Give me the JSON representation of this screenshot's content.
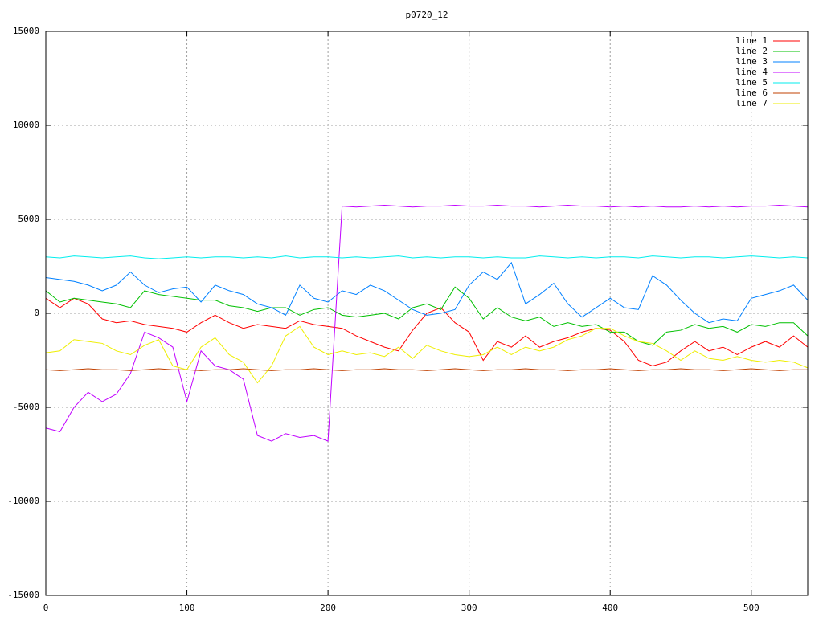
{
  "chart_data": {
    "type": "line",
    "title": "p0720_12",
    "x": [
      0,
      10,
      20,
      30,
      40,
      50,
      60,
      70,
      80,
      90,
      100,
      110,
      120,
      130,
      140,
      150,
      160,
      170,
      180,
      190,
      200,
      210,
      220,
      230,
      240,
      250,
      260,
      270,
      280,
      290,
      300,
      310,
      320,
      330,
      340,
      350,
      360,
      370,
      380,
      390,
      400,
      410,
      420,
      430,
      440,
      450,
      460,
      470,
      480,
      490,
      500,
      510,
      520,
      530,
      540
    ],
    "xlim": [
      0,
      540
    ],
    "xticks": [
      0,
      100,
      200,
      300,
      400,
      500
    ],
    "ylim": [
      -15000,
      15000
    ],
    "yticks": [
      -15000,
      -10000,
      -5000,
      0,
      5000,
      10000,
      15000
    ],
    "grid": true,
    "legend": "top-right",
    "series": [
      {
        "name": "line 1",
        "color": "#ff0000",
        "values": [
          800,
          300,
          800,
          500,
          -300,
          -500,
          -400,
          -600,
          -700,
          -800,
          -1000,
          -500,
          -100,
          -500,
          -800,
          -600,
          -700,
          -800,
          -400,
          -600,
          -700,
          -800,
          -1200,
          -1500,
          -1800,
          -2000,
          -900,
          0,
          300,
          -500,
          -1000,
          -2500,
          -1500,
          -1800,
          -1200,
          -1800,
          -1500,
          -1300,
          -1000,
          -800,
          -900,
          -1500,
          -2500,
          -2800,
          -2600,
          -2000,
          -1500,
          -2000,
          -1800,
          -2200,
          -1800,
          -1500,
          -1800,
          -1200,
          -1800
        ]
      },
      {
        "name": "line 2",
        "color": "#00c000",
        "values": [
          1200,
          600,
          800,
          700,
          600,
          500,
          300,
          1200,
          1000,
          900,
          800,
          700,
          700,
          400,
          300,
          100,
          300,
          300,
          -100,
          200,
          300,
          -100,
          -200,
          -100,
          0,
          -300,
          300,
          500,
          200,
          1400,
          800,
          -300,
          300,
          -200,
          -400,
          -200,
          -700,
          -500,
          -700,
          -600,
          -1000,
          -1000,
          -1500,
          -1700,
          -1000,
          -900,
          -600,
          -800,
          -700,
          -1000,
          -600,
          -700,
          -500,
          -500,
          -1200
        ]
      },
      {
        "name": "line 3",
        "color": "#0080ff",
        "values": [
          1900,
          1800,
          1700,
          1500,
          1200,
          1500,
          2200,
          1500,
          1100,
          1300,
          1400,
          600,
          1500,
          1200,
          1000,
          500,
          300,
          -100,
          1500,
          800,
          600,
          1200,
          1000,
          1500,
          1200,
          700,
          200,
          -100,
          0,
          200,
          1500,
          2200,
          1800,
          2700,
          500,
          1000,
          1600,
          500,
          -200,
          300,
          800,
          300,
          200,
          2000,
          1500,
          700,
          0,
          -500,
          -300,
          -400,
          800,
          1000,
          1200,
          1500,
          700
        ]
      },
      {
        "name": "line 4",
        "color": "#c000ff",
        "values": [
          -6100,
          -6300,
          -5000,
          -4200,
          -4700,
          -4300,
          -3200,
          -1000,
          -1300,
          -1800,
          -4700,
          -2000,
          -2800,
          -3000,
          -3500,
          -6500,
          -6800,
          -6400,
          -6600,
          -6500,
          -6800,
          5700,
          5650,
          5700,
          5750,
          5700,
          5650,
          5700,
          5700,
          5750,
          5700,
          5700,
          5750,
          5700,
          5700,
          5650,
          5700,
          5750,
          5700,
          5700,
          5650,
          5700,
          5650,
          5700,
          5650,
          5650,
          5700,
          5650,
          5700,
          5650,
          5700,
          5700,
          5750,
          5700,
          5650
        ]
      },
      {
        "name": "line 5",
        "color": "#00eeee",
        "values": [
          3000,
          2950,
          3050,
          3000,
          2950,
          3000,
          3050,
          2950,
          2900,
          2950,
          3000,
          2950,
          3000,
          3000,
          2950,
          3000,
          2950,
          3050,
          2950,
          3000,
          3000,
          2950,
          3000,
          2950,
          3000,
          3050,
          2950,
          3000,
          2950,
          3000,
          3000,
          2950,
          3000,
          2950,
          2950,
          3050,
          3000,
          2950,
          3000,
          2950,
          3000,
          3000,
          2950,
          3050,
          3000,
          2950,
          3000,
          3000,
          2950,
          3000,
          3050,
          3000,
          2950,
          3000,
          2950
        ]
      },
      {
        "name": "line 6",
        "color": "#c04000",
        "values": [
          -3000,
          -3050,
          -3000,
          -2950,
          -3000,
          -3000,
          -3050,
          -3000,
          -2950,
          -3000,
          -3000,
          -3050,
          -3000,
          -3000,
          -2950,
          -3000,
          -3050,
          -3000,
          -3000,
          -2950,
          -3000,
          -3050,
          -3000,
          -3000,
          -2950,
          -3000,
          -3000,
          -3050,
          -3000,
          -2950,
          -3000,
          -3050,
          -3000,
          -3000,
          -2950,
          -3000,
          -3000,
          -3050,
          -3000,
          -3000,
          -2950,
          -3000,
          -3050,
          -3000,
          -3000,
          -2950,
          -3000,
          -3000,
          -3050,
          -3000,
          -2950,
          -3000,
          -3050,
          -3000,
          -3000
        ]
      },
      {
        "name": "line 7",
        "color": "#eeee00",
        "values": [
          -2100,
          -2000,
          -1400,
          -1500,
          -1600,
          -2000,
          -2200,
          -1700,
          -1400,
          -2800,
          -3000,
          -1800,
          -1300,
          -2200,
          -2600,
          -3700,
          -2800,
          -1200,
          -700,
          -1800,
          -2200,
          -2000,
          -2200,
          -2100,
          -2300,
          -1800,
          -2400,
          -1700,
          -2000,
          -2200,
          -2300,
          -2200,
          -1800,
          -2200,
          -1800,
          -2000,
          -1800,
          -1400,
          -1200,
          -800,
          -800,
          -1200,
          -1500,
          -1600,
          -2000,
          -2500,
          -2000,
          -2400,
          -2500,
          -2300,
          -2500,
          -2600,
          -2500,
          -2600,
          -2900
        ]
      }
    ]
  }
}
